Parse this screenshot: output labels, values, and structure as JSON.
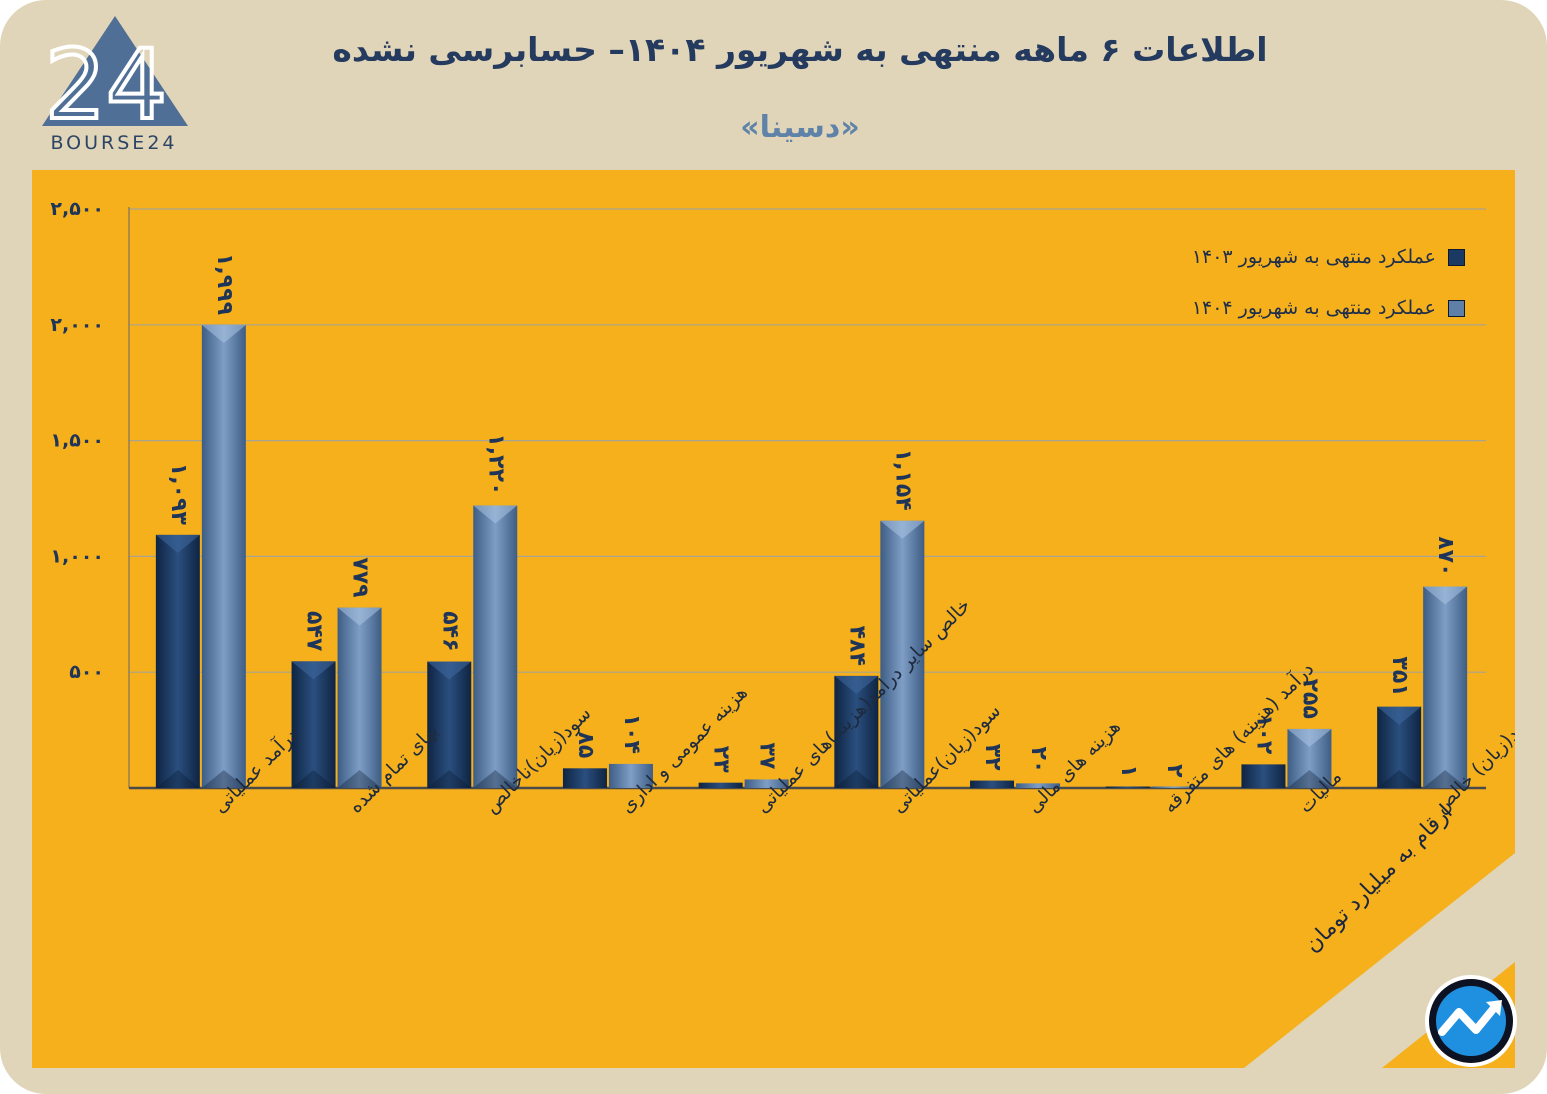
{
  "header": {
    "title": "اطلاعات ۶ ماهه منتهی به شهریور ۱۴۰۴– حسابرسی نشده",
    "subtitle": "«دسینا»",
    "logo_text": "BOURSE24",
    "logo_mark": "24",
    "units_note": "ارقام به میلیارد تومان"
  },
  "icons": {
    "logo": "bourse24-logo-icon",
    "badge": "trend-arrow-icon"
  },
  "colors": {
    "frame": "#e0d5b8",
    "panel": "#f5b01c",
    "series_1403": "#1b3a63",
    "series_1404": "#5e7fa8",
    "gridline": "#a7a492",
    "label": "#1e3459"
  },
  "chart_data": {
    "type": "bar",
    "title": "",
    "xlabel": "",
    "ylabel": "",
    "ylim": [
      0,
      2500
    ],
    "yticks": [
      0,
      500,
      1000,
      1500,
      2000,
      2500
    ],
    "ytick_labels": [
      "",
      "۵۰۰",
      "۱,۰۰۰",
      "۱,۵۰۰",
      "۲,۰۰۰",
      "۲,۵۰۰"
    ],
    "grid": true,
    "legend_position": "top-right",
    "categories": [
      "درآمد عملیاتی",
      "بهای تمام شده",
      "سود(زیان)ناخالص",
      "هزینه عمومی و اداری",
      "خالص سایر درامد(هزینه)های عملیاتی",
      "سود(زیان)عملیاتی",
      "هزینه های مالی",
      "درآمد (هزینه) های متفرقه",
      "مالیات",
      "سود(زیان) خالص"
    ],
    "series": [
      {
        "name": "عملکرد منتهی به شهریور ۱۴۰۳",
        "values": [
          1093,
          547,
          546,
          85,
          23,
          484,
          32,
          1,
          102,
          351
        ],
        "labels": [
          "۱,۰۹۳",
          "۵۴۷",
          "۵۴۶",
          "۸۵",
          "۲۳",
          "۴۸۴",
          "۳۲",
          "۱",
          "۱۰۲",
          "۳۵۱"
        ]
      },
      {
        "name": "عملکرد منتهی به شهریور ۱۴۰۴",
        "values": [
          1999,
          779,
          1220,
          104,
          37,
          1154,
          20,
          2,
          255,
          870
        ],
        "labels": [
          "۱,۹۹۹",
          "۷۷۹",
          "۱,۲۲۰",
          "۱۰۴",
          "۳۷",
          "۱,۱۵۴",
          "۲۰",
          "۲",
          "۲۵۵",
          "۸۷۰"
        ]
      }
    ]
  }
}
